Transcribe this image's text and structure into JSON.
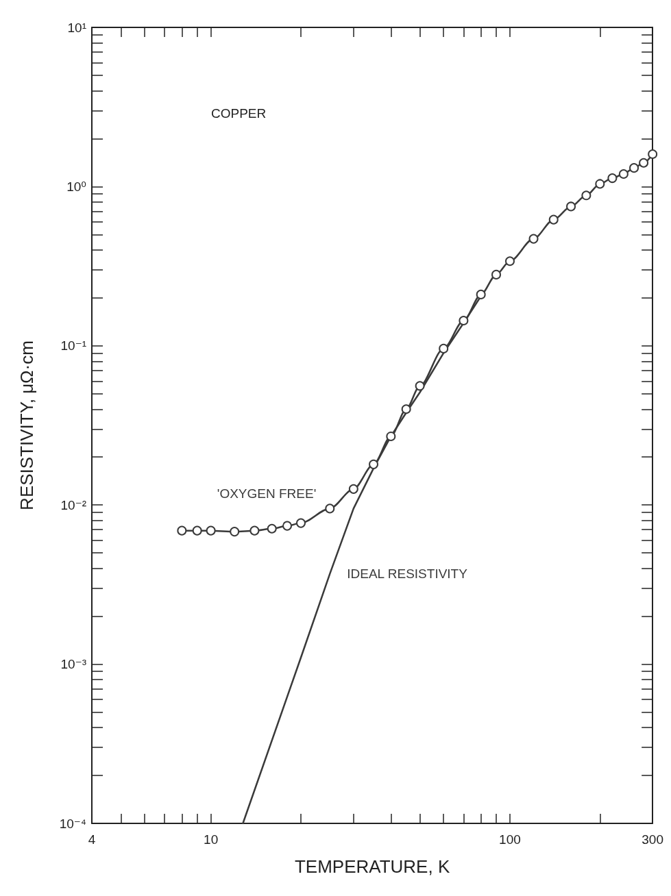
{
  "chart_data": {
    "type": "line",
    "xlabel": "TEMPERATURE, K",
    "ylabel": "RESISTIVITY, μΩ·cm",
    "annotations": [
      "COPPER"
    ],
    "log": "xy",
    "grid": false,
    "legend": false,
    "line_style": "solid",
    "xlim": [
      4,
      300
    ],
    "ylim": [
      0.0001,
      10
    ],
    "xticks": [
      4,
      {
        "value": 5,
        "label": null
      },
      {
        "value": 6,
        "label": null
      },
      {
        "value": 7,
        "label": null
      },
      {
        "value": 8,
        "label": null
      },
      {
        "value": 9,
        "label": null
      },
      10,
      {
        "value": 20,
        "label": null
      },
      {
        "value": 30,
        "label": null
      },
      {
        "value": 40,
        "label": null
      },
      {
        "value": 50,
        "label": null
      },
      {
        "value": 60,
        "label": null
      },
      {
        "value": 70,
        "label": null
      },
      {
        "value": 80,
        "label": null
      },
      {
        "value": 90,
        "label": null
      },
      100,
      {
        "value": 200,
        "label": null
      },
      300
    ],
    "yticks": [
      {
        "value": 0.0001,
        "label": "10⁻⁴"
      },
      {
        "value": 0.0002,
        "label": null
      },
      {
        "value": 0.0003,
        "label": null
      },
      {
        "value": 0.0004,
        "label": null
      },
      {
        "value": 0.0005,
        "label": null
      },
      {
        "value": 0.0006,
        "label": null
      },
      {
        "value": 0.0007,
        "label": null
      },
      {
        "value": 0.0008,
        "label": null
      },
      {
        "value": 0.0009,
        "label": null
      },
      {
        "value": 0.001,
        "label": "10⁻³"
      },
      {
        "value": 0.002,
        "label": null
      },
      {
        "value": 0.003,
        "label": null
      },
      {
        "value": 0.004,
        "label": null
      },
      {
        "value": 0.005,
        "label": null
      },
      {
        "value": 0.006,
        "label": null
      },
      {
        "value": 0.007,
        "label": null
      },
      {
        "value": 0.008,
        "label": null
      },
      {
        "value": 0.009,
        "label": null
      },
      {
        "value": 0.01,
        "label": "10⁻²"
      },
      {
        "value": 0.02,
        "label": null
      },
      {
        "value": 0.03,
        "label": null
      },
      {
        "value": 0.04,
        "label": null
      },
      {
        "value": 0.05,
        "label": null
      },
      {
        "value": 0.06,
        "label": null
      },
      {
        "value": 0.07,
        "label": null
      },
      {
        "value": 0.08,
        "label": null
      },
      {
        "value": 0.09,
        "label": null
      },
      {
        "value": 0.1,
        "label": "10⁻¹"
      },
      {
        "value": 0.2,
        "label": null
      },
      {
        "value": 0.3,
        "label": null
      },
      {
        "value": 0.4,
        "label": null
      },
      {
        "value": 0.5,
        "label": null
      },
      {
        "value": 0.6,
        "label": null
      },
      {
        "value": 0.7,
        "label": null
      },
      {
        "value": 0.8,
        "label": null
      },
      {
        "value": 0.9,
        "label": null
      },
      {
        "value": 1,
        "label": "10⁰"
      },
      {
        "value": 2,
        "label": null
      },
      {
        "value": 3,
        "label": null
      },
      {
        "value": 4,
        "label": null
      },
      {
        "value": 5,
        "label": null
      },
      {
        "value": 6,
        "label": null
      },
      {
        "value": 7,
        "label": null
      },
      {
        "value": 8,
        "label": null
      },
      {
        "value": 9,
        "label": null
      },
      {
        "value": 10,
        "label": "10¹"
      }
    ],
    "series": [
      {
        "name": "'OXYGEN FREE'",
        "color": "#3a3a3a",
        "marker": "circle",
        "x": [
          8,
          9,
          10,
          12,
          14,
          16,
          18,
          20,
          25,
          30,
          35,
          40,
          45,
          50,
          60,
          70,
          80,
          90,
          100,
          120,
          140,
          160,
          180,
          200,
          220,
          240,
          260,
          280,
          300
        ],
        "values": [
          0.0069,
          0.0069,
          0.0069,
          0.0068,
          0.0069,
          0.0071,
          0.0074,
          0.0077,
          0.0095,
          0.0126,
          0.018,
          0.027,
          0.04,
          0.056,
          0.096,
          0.144,
          0.21,
          0.28,
          0.34,
          0.47,
          0.62,
          0.75,
          0.88,
          1.04,
          1.13,
          1.2,
          1.31,
          1.41,
          1.6
        ]
      },
      {
        "name": "IDEAL RESISTIVITY",
        "color": "#3a3a3a",
        "marker": "none",
        "x": [
          12.8,
          20,
          25,
          30,
          35,
          40,
          45,
          50,
          60,
          70,
          80
        ],
        "values": [
          0.0001,
          0.0011,
          0.0037,
          0.0095,
          0.017,
          0.027,
          0.038,
          0.051,
          0.09,
          0.139,
          0.205
        ]
      }
    ]
  }
}
